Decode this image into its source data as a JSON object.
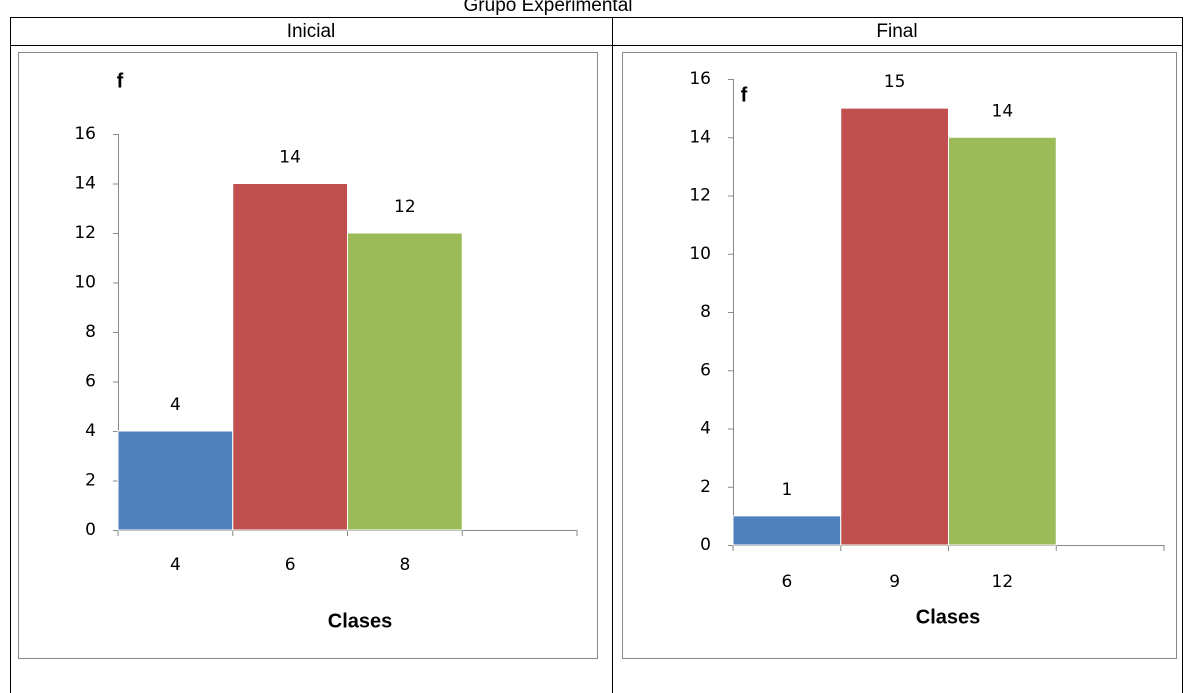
{
  "title": "Grupo Experimental",
  "table": {
    "headers": [
      "Inicial",
      "Final"
    ]
  },
  "chart_data": [
    {
      "type": "bar",
      "ylabel": "f",
      "xlabel": "Clases",
      "categories": [
        "4",
        "6",
        "8",
        null
      ],
      "values": [
        4,
        14,
        12,
        null
      ],
      "colors": [
        "#4f81bd",
        "#c0504d",
        "#9bbb59",
        null
      ],
      "ylim": [
        0,
        16
      ],
      "yticks": [
        0,
        2,
        4,
        6,
        8,
        10,
        12,
        14,
        16
      ]
    },
    {
      "type": "bar",
      "ylabel": "f",
      "xlabel": "Clases",
      "categories": [
        "6",
        "9",
        "12",
        null
      ],
      "values": [
        1,
        15,
        14,
        null
      ],
      "colors": [
        "#4f81bd",
        "#c0504d",
        "#9bbb59",
        null
      ],
      "ylim": [
        0,
        16
      ],
      "yticks": [
        0,
        2,
        4,
        6,
        8,
        10,
        12,
        14,
        16
      ]
    }
  ]
}
